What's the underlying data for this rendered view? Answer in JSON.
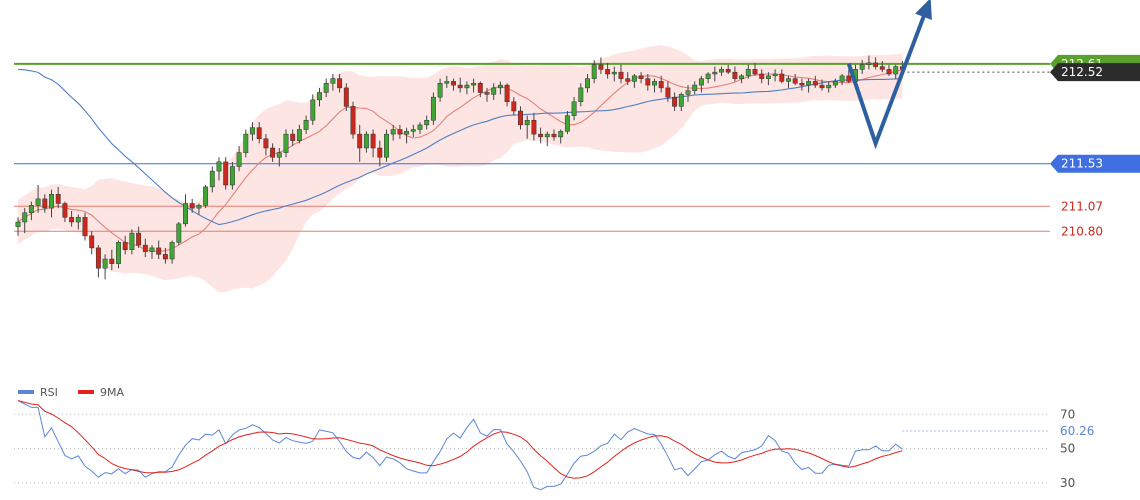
{
  "chart_data": [
    {
      "type": "candlestick",
      "panel": "price",
      "ylim": [
        209.3,
        213.3
      ],
      "candles_ohlc": [
        [
          210.85,
          210.95,
          210.75,
          210.9
        ],
        [
          210.9,
          211.05,
          210.78,
          211.0
        ],
        [
          211.0,
          211.12,
          210.92,
          211.08
        ],
        [
          211.08,
          211.3,
          211.0,
          211.15
        ],
        [
          211.15,
          211.2,
          211.0,
          211.05
        ],
        [
          211.05,
          211.25,
          210.95,
          211.2
        ],
        [
          211.2,
          211.28,
          211.05,
          211.1
        ],
        [
          211.1,
          211.12,
          210.9,
          210.95
        ],
        [
          210.95,
          211.02,
          210.85,
          210.9
        ],
        [
          210.9,
          210.98,
          210.82,
          210.95
        ],
        [
          210.95,
          211.0,
          210.7,
          210.75
        ],
        [
          210.75,
          210.8,
          210.55,
          210.62
        ],
        [
          210.62,
          210.65,
          210.3,
          210.4
        ],
        [
          210.4,
          210.55,
          210.28,
          210.5
        ],
        [
          210.5,
          210.6,
          210.38,
          210.45
        ],
        [
          210.45,
          210.7,
          210.4,
          210.68
        ],
        [
          210.68,
          210.75,
          210.55,
          210.6
        ],
        [
          210.6,
          210.82,
          210.55,
          210.78
        ],
        [
          210.78,
          210.85,
          210.62,
          210.65
        ],
        [
          210.65,
          210.72,
          210.52,
          210.58
        ],
        [
          210.58,
          210.65,
          210.5,
          210.62
        ],
        [
          210.62,
          210.7,
          210.5,
          210.55
        ],
        [
          210.55,
          210.62,
          210.45,
          210.5
        ],
        [
          210.5,
          210.7,
          210.45,
          210.68
        ],
        [
          210.68,
          210.9,
          210.65,
          210.88
        ],
        [
          210.88,
          211.2,
          210.85,
          211.1
        ],
        [
          211.1,
          211.15,
          211.0,
          211.05
        ],
        [
          211.05,
          211.1,
          210.98,
          211.08
        ],
        [
          211.08,
          211.3,
          211.05,
          211.28
        ],
        [
          211.28,
          211.5,
          211.22,
          211.45
        ],
        [
          211.45,
          211.6,
          211.35,
          211.55
        ],
        [
          211.55,
          211.6,
          211.25,
          211.3
        ],
        [
          211.3,
          211.55,
          211.25,
          211.5
        ],
        [
          211.5,
          211.72,
          211.45,
          211.65
        ],
        [
          211.65,
          211.9,
          211.6,
          211.85
        ],
        [
          211.85,
          211.98,
          211.78,
          211.92
        ],
        [
          211.92,
          211.98,
          211.75,
          211.8
        ],
        [
          211.8,
          211.85,
          211.62,
          211.7
        ],
        [
          211.7,
          211.75,
          211.55,
          211.6
        ],
        [
          211.6,
          211.7,
          211.5,
          211.65
        ],
        [
          211.65,
          211.9,
          211.6,
          211.85
        ],
        [
          211.85,
          211.9,
          211.72,
          211.78
        ],
        [
          211.78,
          211.95,
          211.75,
          211.9
        ],
        [
          211.9,
          212.05,
          211.85,
          212.0
        ],
        [
          212.0,
          212.28,
          211.95,
          212.22
        ],
        [
          212.22,
          212.35,
          212.15,
          212.3
        ],
        [
          212.3,
          212.45,
          212.25,
          212.4
        ],
        [
          212.4,
          212.5,
          212.32,
          212.45
        ],
        [
          212.45,
          212.5,
          212.3,
          212.35
        ],
        [
          212.35,
          212.4,
          212.1,
          212.15
        ],
        [
          212.15,
          212.2,
          211.8,
          211.85
        ],
        [
          211.85,
          211.95,
          211.55,
          211.7
        ],
        [
          211.7,
          211.88,
          211.65,
          211.85
        ],
        [
          211.85,
          211.9,
          211.6,
          211.7
        ],
        [
          211.7,
          211.78,
          211.5,
          211.6
        ],
        [
          211.6,
          211.9,
          211.55,
          211.85
        ],
        [
          211.85,
          211.95,
          211.78,
          211.9
        ],
        [
          211.9,
          211.95,
          211.8,
          211.85
        ],
        [
          211.85,
          211.92,
          211.75,
          211.88
        ],
        [
          211.88,
          211.95,
          211.82,
          211.9
        ],
        [
          211.9,
          211.98,
          211.85,
          211.95
        ],
        [
          211.95,
          212.05,
          211.9,
          212.0
        ],
        [
          212.0,
          212.3,
          211.95,
          212.25
        ],
        [
          212.25,
          212.45,
          212.2,
          212.4
        ],
        [
          212.4,
          212.48,
          212.35,
          212.42
        ],
        [
          212.42,
          212.45,
          212.32,
          212.38
        ],
        [
          212.38,
          212.46,
          212.3,
          212.35
        ],
        [
          212.35,
          212.42,
          212.28,
          212.38
        ],
        [
          212.38,
          212.45,
          212.3,
          212.4
        ],
        [
          212.4,
          212.42,
          212.25,
          212.3
        ],
        [
          212.3,
          212.35,
          212.2,
          212.28
        ],
        [
          212.28,
          212.4,
          212.22,
          212.35
        ],
        [
          212.35,
          212.42,
          212.28,
          212.38
        ],
        [
          212.38,
          212.4,
          212.15,
          212.2
        ],
        [
          212.2,
          212.25,
          212.05,
          212.1
        ],
        [
          212.1,
          212.15,
          211.9,
          211.95
        ],
        [
          211.95,
          212.05,
          211.8,
          212.0
        ],
        [
          212.0,
          212.08,
          211.78,
          211.85
        ],
        [
          211.85,
          211.92,
          211.75,
          211.82
        ],
        [
          211.82,
          211.88,
          211.72,
          211.85
        ],
        [
          211.85,
          211.9,
          211.78,
          211.82
        ],
        [
          211.82,
          211.9,
          211.75,
          211.88
        ],
        [
          211.88,
          212.1,
          211.85,
          212.05
        ],
        [
          212.05,
          212.25,
          212.0,
          212.2
        ],
        [
          212.2,
          212.4,
          212.15,
          212.35
        ],
        [
          212.35,
          212.5,
          212.3,
          212.45
        ],
        [
          212.45,
          212.65,
          212.4,
          212.6
        ],
        [
          212.6,
          212.68,
          212.5,
          212.55
        ],
        [
          212.55,
          212.62,
          212.45,
          212.5
        ],
        [
          212.5,
          212.58,
          212.42,
          212.52
        ],
        [
          212.52,
          212.6,
          212.4,
          212.45
        ],
        [
          212.45,
          212.52,
          212.38,
          212.42
        ],
        [
          212.42,
          212.5,
          212.35,
          212.48
        ],
        [
          212.48,
          212.52,
          212.4,
          212.45
        ],
        [
          212.45,
          212.5,
          212.32,
          212.38
        ],
        [
          212.38,
          212.45,
          212.3,
          212.42
        ],
        [
          212.42,
          212.48,
          212.3,
          212.35
        ],
        [
          212.35,
          212.42,
          212.2,
          212.25
        ],
        [
          212.25,
          212.3,
          212.1,
          212.15
        ],
        [
          212.15,
          212.3,
          212.1,
          212.28
        ],
        [
          212.28,
          212.38,
          212.2,
          212.32
        ],
        [
          212.32,
          212.42,
          212.28,
          212.38
        ],
        [
          212.38,
          212.48,
          212.3,
          212.45
        ],
        [
          212.45,
          212.52,
          212.4,
          212.5
        ],
        [
          212.5,
          212.58,
          212.42,
          212.52
        ],
        [
          212.52,
          212.58,
          212.48,
          212.55
        ],
        [
          212.55,
          212.6,
          212.5,
          212.52
        ],
        [
          212.52,
          212.58,
          212.42,
          212.45
        ],
        [
          212.45,
          212.5,
          212.4,
          212.48
        ],
        [
          212.48,
          212.6,
          212.45,
          212.55
        ],
        [
          212.55,
          212.62,
          212.48,
          212.5
        ],
        [
          212.5,
          212.55,
          212.4,
          212.45
        ],
        [
          212.45,
          212.52,
          212.38,
          212.48
        ],
        [
          212.48,
          212.55,
          212.42,
          212.5
        ],
        [
          212.5,
          212.55,
          212.4,
          212.42
        ],
        [
          212.42,
          212.48,
          212.35,
          212.45
        ],
        [
          212.45,
          212.5,
          212.38,
          212.4
        ],
        [
          212.4,
          212.45,
          212.32,
          212.38
        ],
        [
          212.38,
          212.45,
          212.3,
          212.42
        ],
        [
          212.42,
          212.48,
          212.35,
          212.38
        ],
        [
          212.38,
          212.44,
          212.32,
          212.35
        ],
        [
          212.35,
          212.42,
          212.3,
          212.38
        ],
        [
          212.38,
          212.45,
          212.35,
          212.42
        ],
        [
          212.42,
          212.5,
          212.38,
          212.48
        ],
        [
          212.48,
          212.55,
          212.4,
          212.42
        ],
        [
          212.42,
          212.6,
          212.35,
          212.55
        ],
        [
          212.55,
          212.65,
          212.5,
          212.6
        ],
        [
          212.6,
          212.7,
          212.55,
          212.62
        ],
        [
          212.62,
          212.68,
          212.55,
          212.58
        ],
        [
          212.58,
          212.64,
          212.52,
          212.55
        ],
        [
          212.55,
          212.6,
          212.48,
          212.5
        ],
        [
          212.5,
          212.6,
          212.45,
          212.58
        ],
        [
          212.58,
          212.64,
          212.5,
          212.55
        ]
      ],
      "series": [
        {
          "kind": "moving-average-short",
          "color": "#e8807a"
        },
        {
          "kind": "moving-average-long",
          "color": "#4f7fc4"
        },
        {
          "kind": "bollinger-band",
          "color": "#fbe0de"
        }
      ],
      "horizontal_levels": [
        {
          "value": 212.61,
          "label": "212.61",
          "color": "#5aa02c",
          "label_bg": "#5aa02c",
          "label_fg": "#ffffff"
        },
        {
          "value": 212.52,
          "label": "212.52",
          "color": "#444444",
          "label_bg": "#2c2c2c",
          "label_fg": "#ffffff",
          "style": "dotted"
        },
        {
          "value": 211.53,
          "label": "211.53",
          "color": "#3f6fe0",
          "label_bg": "#3f6fe0",
          "label_fg": "#ffffff"
        },
        {
          "value": 211.07,
          "label": "211.07",
          "color": "#e57b72",
          "label_fg": "#cc2a1e"
        },
        {
          "value": 210.8,
          "label": "210.80",
          "color": "#e57b72",
          "label_fg": "#cc2a1e"
        }
      ],
      "projection_path": [
        [
          124,
          212.61
        ],
        [
          128,
          211.75
        ],
        [
          136,
          213.28
        ]
      ],
      "projection_color": "#2e5f9e",
      "grid": false
    },
    {
      "type": "line",
      "panel": "rsi",
      "ylim": [
        20,
        90
      ],
      "reference_levels": [
        {
          "value": 70,
          "label": "70"
        },
        {
          "value": 50,
          "label": "50"
        },
        {
          "value": 30,
          "label": "30"
        }
      ],
      "current_value": {
        "value": 60.26,
        "label": "60.26"
      },
      "series": [
        {
          "name": "RSI",
          "color": "#5b86d8"
        },
        {
          "name": "9MA",
          "color": "#e0231c"
        }
      ]
    }
  ]
}
